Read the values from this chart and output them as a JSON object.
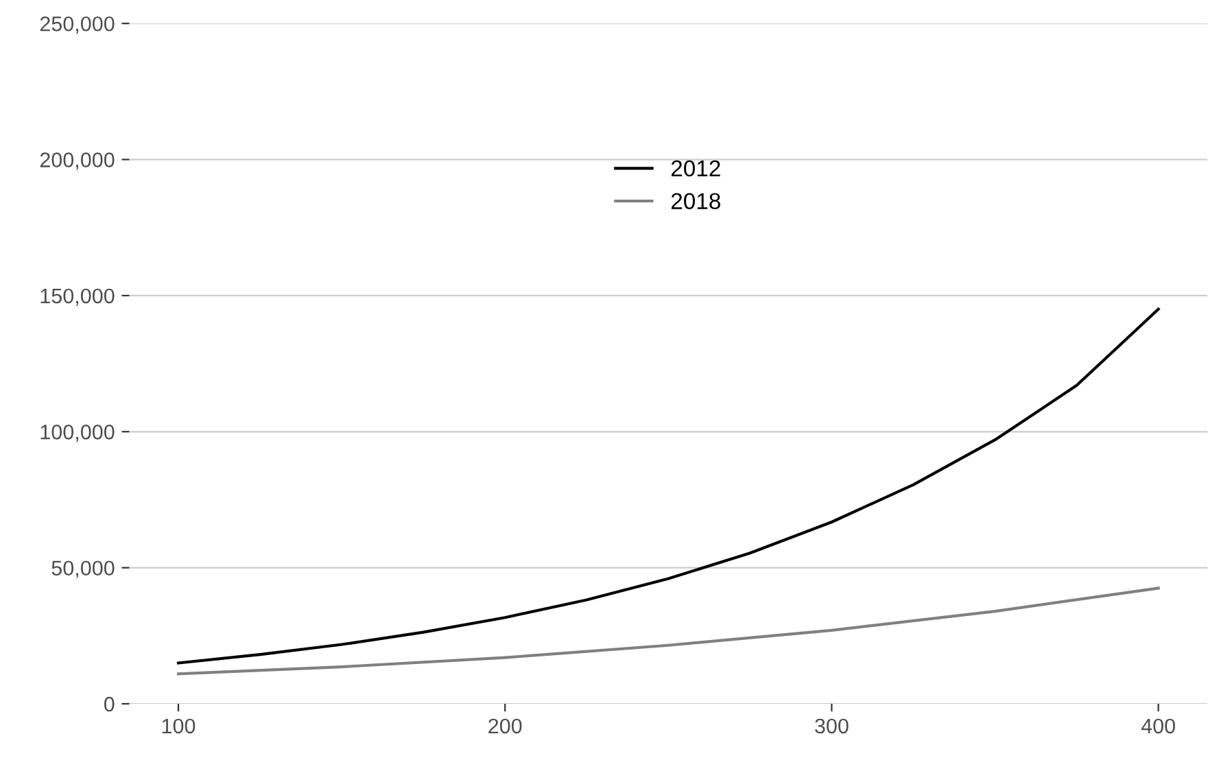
{
  "chart_data": {
    "type": "line",
    "series": [
      {
        "name": "2012",
        "color": "#000000",
        "x": [
          100,
          125,
          150,
          175,
          200,
          225,
          250,
          275,
          300,
          325,
          350,
          375,
          400
        ],
        "values": [
          15000,
          18100,
          21800,
          26300,
          31700,
          38200,
          46000,
          55400,
          66800,
          80500,
          97000,
          117000,
          145000
        ]
      },
      {
        "name": "2018",
        "color": "#808080",
        "x": [
          100,
          150,
          200,
          250,
          300,
          350,
          400
        ],
        "values": [
          11000,
          13600,
          17000,
          21500,
          27000,
          34000,
          42500
        ]
      }
    ],
    "xlim": [
      85,
      415
    ],
    "xticks": [
      100,
      200,
      300,
      400
    ],
    "ylim": [
      0,
      250000
    ],
    "yticks": [
      {
        "value": 0,
        "label": "0"
      },
      {
        "value": 50000,
        "label": "50,000"
      },
      {
        "value": 100000,
        "label": "100,000"
      },
      {
        "value": 150000,
        "label": "150,000"
      },
      {
        "value": 200000,
        "label": "200,000"
      },
      {
        "value": 250000,
        "label": "250,000"
      }
    ],
    "grid": "y",
    "legend": "top",
    "line_style": "solid",
    "marker": "none"
  }
}
